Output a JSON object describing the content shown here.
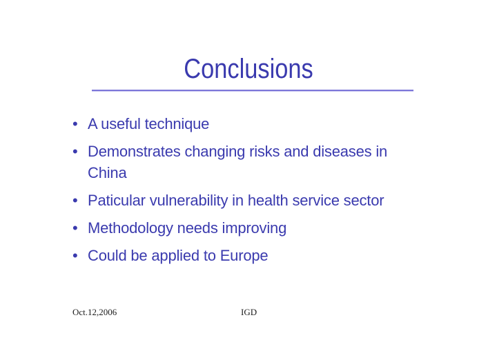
{
  "slide": {
    "title": "Conclusions",
    "bullet_glyph": "•",
    "bullets": [
      "A useful technique",
      "Demonstrates changing risks and diseases in\nChina",
      "Paticular vulnerability in health service sector",
      "Methodology needs improving",
      "Could be applied to Europe"
    ],
    "footer": {
      "date": "Oct.12,2006",
      "author": "IGD"
    },
    "colors": {
      "text": "#3a3aae",
      "underline": "#7c76d8",
      "footer_text": "#1c1c1c",
      "background": "#ffffff"
    }
  }
}
